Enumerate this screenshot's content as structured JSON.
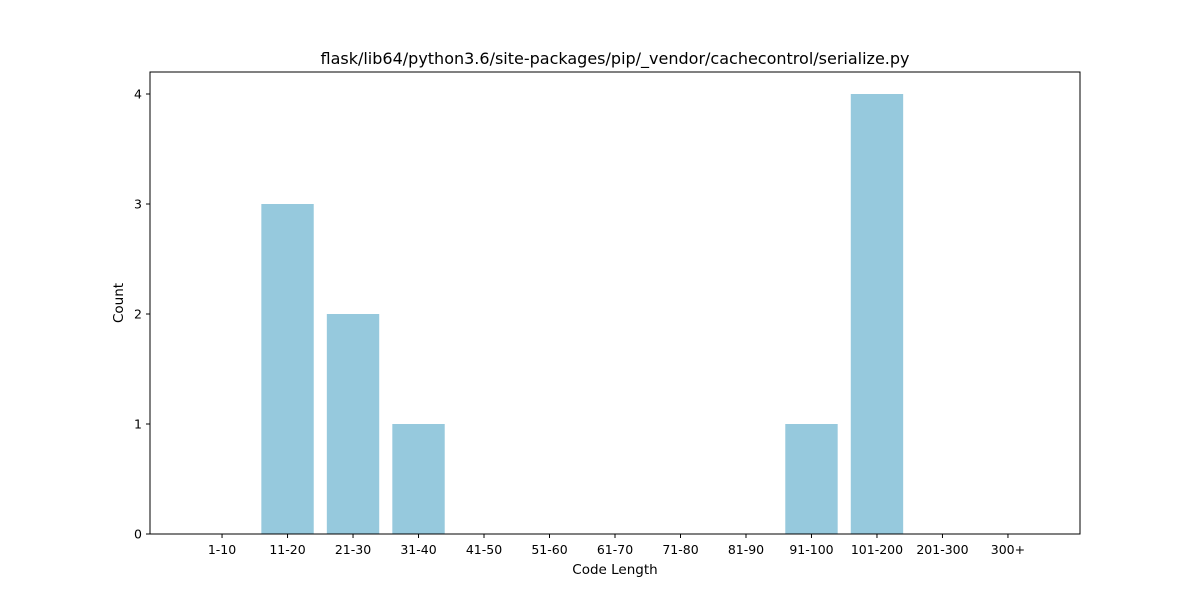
{
  "chart_data": {
    "type": "bar",
    "title": "flask/lib64/python3.6/site-packages/pip/_vendor/cachecontrol/serialize.py",
    "xlabel": "Code Length",
    "ylabel": "Count",
    "categories": [
      "1-10",
      "11-20",
      "21-30",
      "31-40",
      "41-50",
      "51-60",
      "61-70",
      "71-80",
      "81-90",
      "91-100",
      "101-200",
      "201-300",
      "300+"
    ],
    "values": [
      0,
      3,
      2,
      1,
      0,
      0,
      0,
      0,
      0,
      1,
      4,
      0,
      0
    ],
    "ylim": [
      0,
      4.2
    ],
    "yticks": [
      0,
      1,
      2,
      3,
      4
    ],
    "bar_color": "#96c9dd",
    "grid": false,
    "legend": "none"
  }
}
